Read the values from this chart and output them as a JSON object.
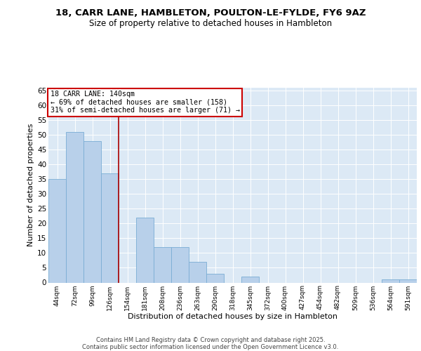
{
  "title_line1": "18, CARR LANE, HAMBLETON, POULTON-LE-FYLDE, FY6 9AZ",
  "title_line2": "Size of property relative to detached houses in Hambleton",
  "xlabel": "Distribution of detached houses by size in Hambleton",
  "ylabel": "Number of detached properties",
  "bin_labels": [
    "44sqm",
    "72sqm",
    "99sqm",
    "126sqm",
    "154sqm",
    "181sqm",
    "208sqm",
    "236sqm",
    "263sqm",
    "290sqm",
    "318sqm",
    "345sqm",
    "372sqm",
    "400sqm",
    "427sqm",
    "454sqm",
    "482sqm",
    "509sqm",
    "536sqm",
    "564sqm",
    "591sqm"
  ],
  "bar_values": [
    35,
    51,
    48,
    37,
    0,
    22,
    12,
    12,
    7,
    3,
    0,
    2,
    0,
    0,
    0,
    0,
    0,
    0,
    0,
    1,
    1
  ],
  "bar_color": "#b8d0ea",
  "bar_edge_color": "#7aadd4",
  "vline_pos": 3.5,
  "vline_color": "#aa0000",
  "annotation_title": "18 CARR LANE: 140sqm",
  "annotation_line2": "← 69% of detached houses are smaller (158)",
  "annotation_line3": "31% of semi-detached houses are larger (71) →",
  "annotation_box_facecolor": "#ffffff",
  "annotation_box_edgecolor": "#cc0000",
  "ylim": [
    0,
    66
  ],
  "yticks": [
    0,
    5,
    10,
    15,
    20,
    25,
    30,
    35,
    40,
    45,
    50,
    55,
    60,
    65
  ],
  "bg_color": "#dce9f5",
  "fig_bg": "#ffffff",
  "footer_line1": "Contains HM Land Registry data © Crown copyright and database right 2025.",
  "footer_line2": "Contains public sector information licensed under the Open Government Licence v3.0."
}
